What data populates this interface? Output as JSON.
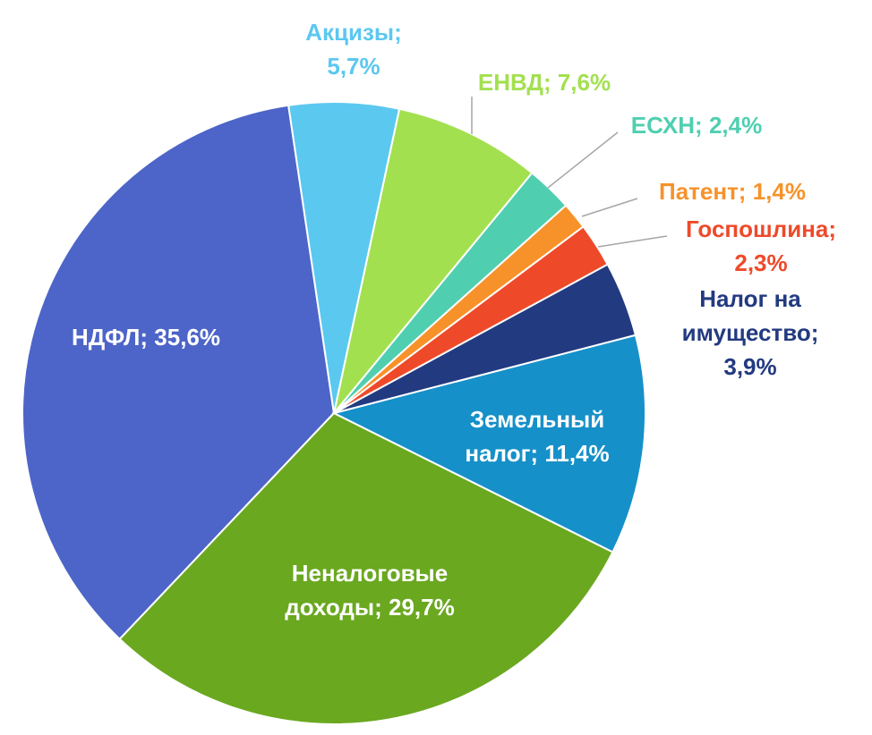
{
  "chart_data": {
    "type": "pie",
    "categories": [
      "Акцизы;",
      "ЕНВД;",
      "ЕСХН;",
      "Патент;",
      "Госпошлина;",
      "Налог на имущество;",
      "Земельный налог;",
      "Неналоговые доходы;",
      "НДФЛ;"
    ],
    "values": [
      5.7,
      7.6,
      2.4,
      1.4,
      2.3,
      3.9,
      11.4,
      29.7,
      35.6
    ],
    "value_labels": [
      "5,7%",
      "7,6%",
      "2,4%",
      "1,4%",
      "2,3%",
      "3,9%",
      "11,4%",
      "29,7%",
      "35,6%"
    ],
    "colors": [
      "#5bc8f0",
      "#a3e050",
      "#4fcfb0",
      "#f7922a",
      "#ee4a2a",
      "#223a80",
      "#1690c8",
      "#6aa820",
      "#4d65c8"
    ]
  }
}
